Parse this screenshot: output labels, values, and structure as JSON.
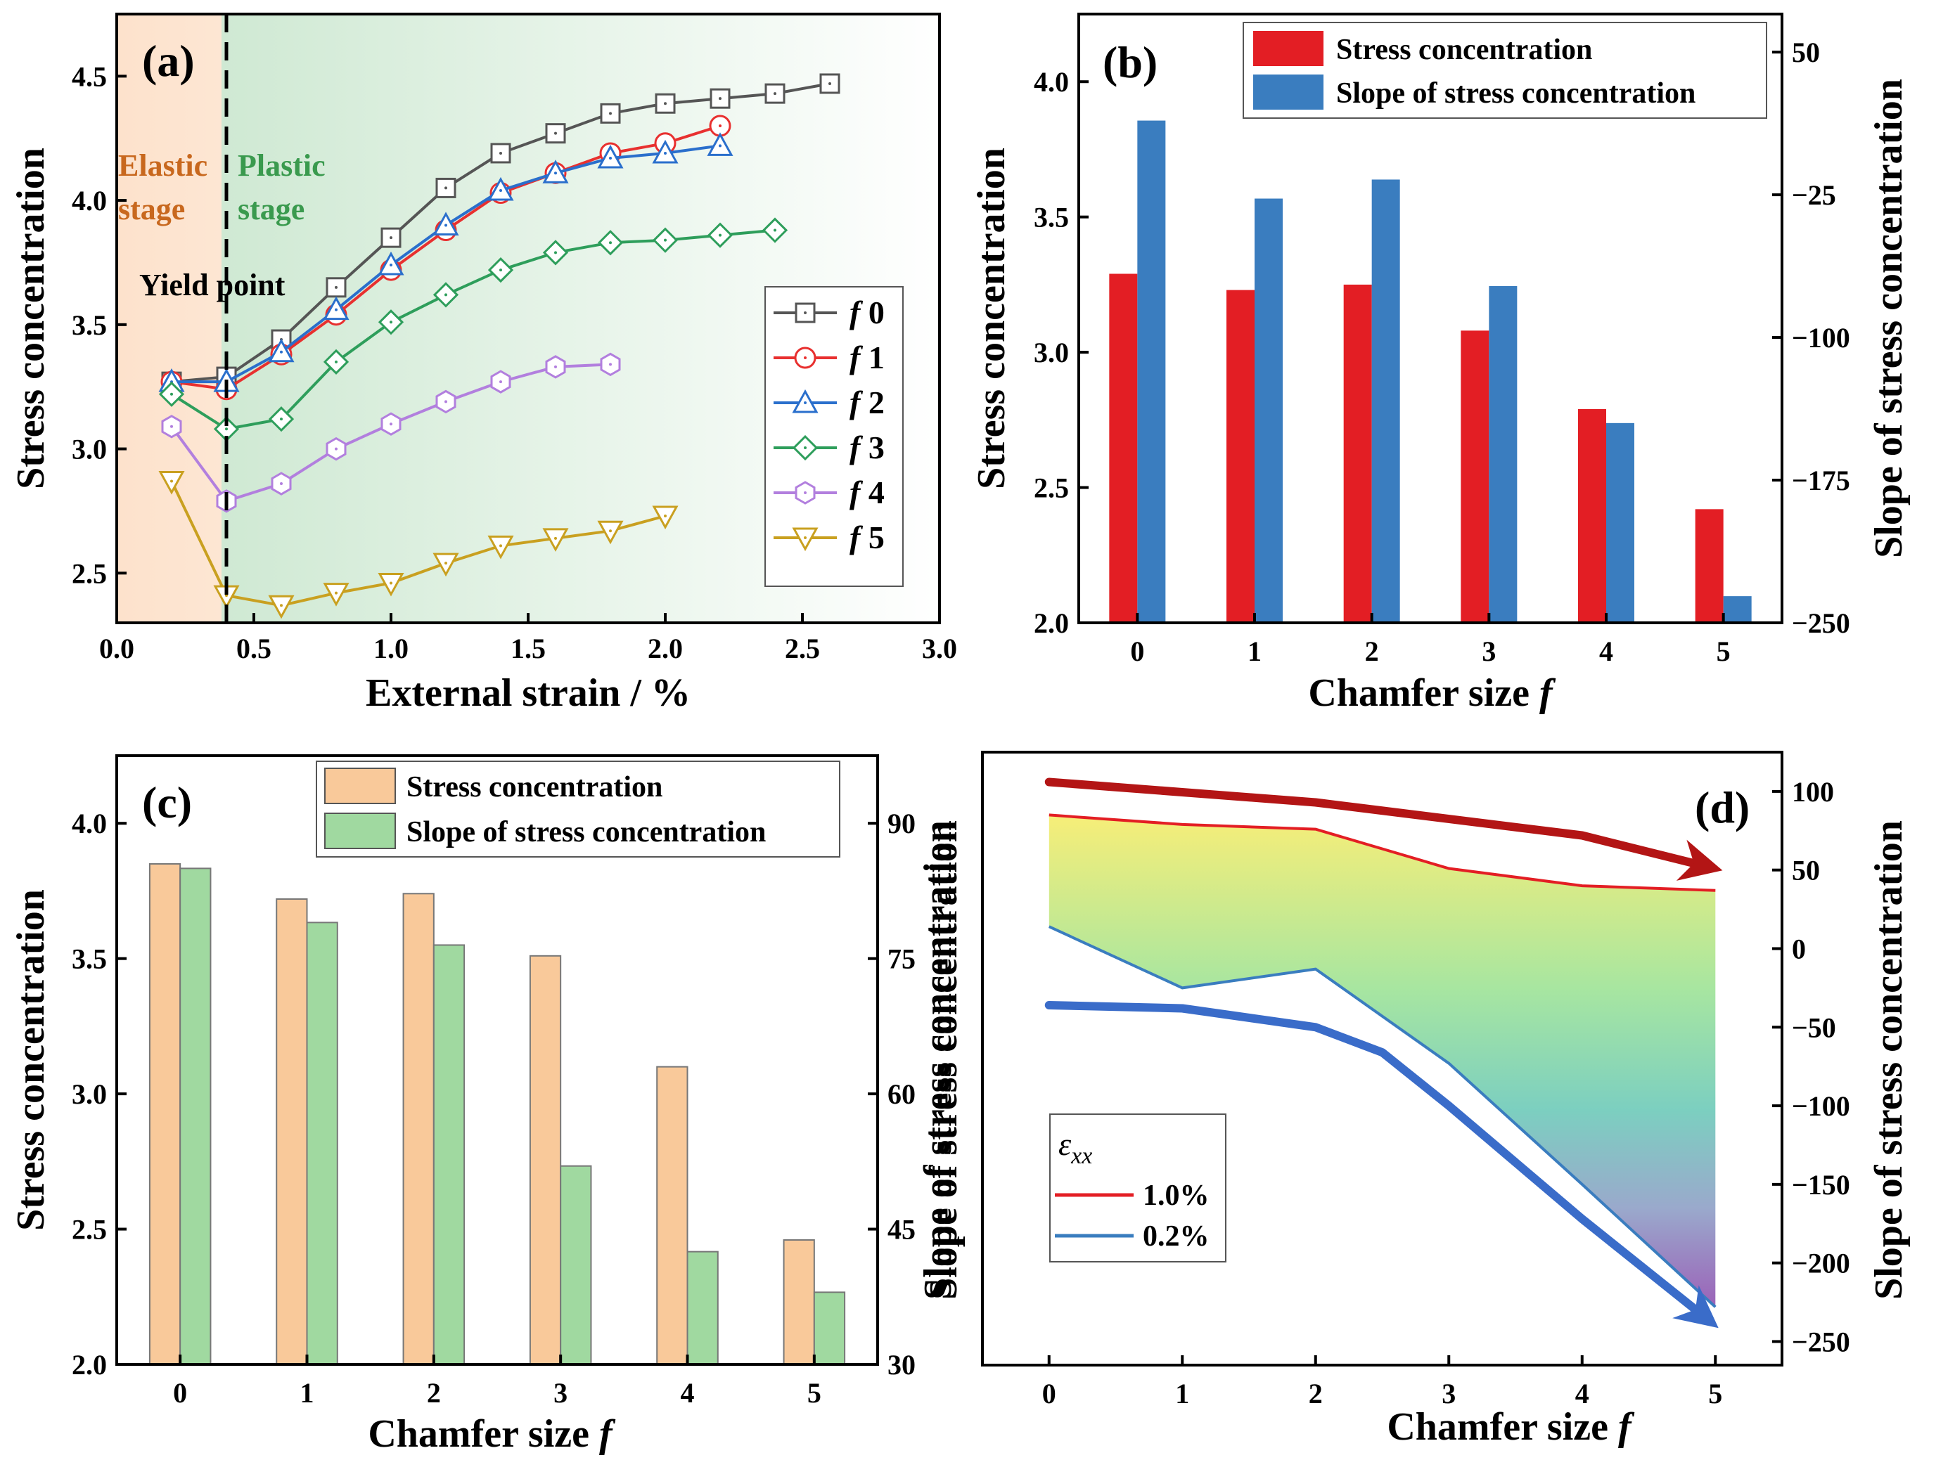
{
  "chart_data": [
    {
      "panel": "(a)",
      "type": "line",
      "xlabel": "External strain / %",
      "ylabel": "Stress concentration",
      "xlim": [
        0.0,
        3.0
      ],
      "ylim": [
        2.3,
        4.75
      ],
      "xticks": [
        0.0,
        0.5,
        1.0,
        1.5,
        2.0,
        2.5,
        3.0
      ],
      "xtick_labels": [
        "0.0",
        "0.5",
        "1.0",
        "1.5",
        "2.0",
        "2.5",
        "3.0"
      ],
      "yticks": [
        2.5,
        3.0,
        3.5,
        4.0,
        4.5
      ],
      "ytick_labels": [
        "2.5",
        "3.0",
        "3.5",
        "4.0",
        "4.5"
      ],
      "colors": {
        "elastic_region": "#fde2cc",
        "plastic_region": "#d9efdc",
        "elastic_text": "#c8681e",
        "plastic_text": "#3a9a4e"
      },
      "annotations": {
        "elastic": "Elastic\nstage",
        "plastic": "Plastic\nstage",
        "yield": "Yield point",
        "yield_x": 0.4
      },
      "legend_symbol": "f",
      "series": [
        {
          "name": "0",
          "marker": "square",
          "color": "#555555",
          "x": [
            0.2,
            0.4,
            0.6,
            0.8,
            1.0,
            1.2,
            1.4,
            1.6,
            1.8,
            2.0,
            2.2,
            2.4,
            2.6
          ],
          "values": [
            3.27,
            3.29,
            3.44,
            3.65,
            3.85,
            4.05,
            4.19,
            4.27,
            4.35,
            4.39,
            4.41,
            4.43,
            4.47
          ]
        },
        {
          "name": "1",
          "marker": "circle",
          "color": "#e8302f",
          "x": [
            0.2,
            0.4,
            0.6,
            0.8,
            1.0,
            1.2,
            1.4,
            1.6,
            1.8,
            2.0,
            2.2
          ],
          "values": [
            3.27,
            3.24,
            3.38,
            3.54,
            3.72,
            3.88,
            4.03,
            4.11,
            4.19,
            4.23,
            4.3
          ]
        },
        {
          "name": "2",
          "marker": "triangle",
          "color": "#2a6fcc",
          "x": [
            0.2,
            0.4,
            0.6,
            0.8,
            1.0,
            1.2,
            1.4,
            1.6,
            1.8,
            2.0,
            2.2
          ],
          "values": [
            3.27,
            3.27,
            3.39,
            3.56,
            3.74,
            3.9,
            4.04,
            4.11,
            4.17,
            4.19,
            4.22
          ]
        },
        {
          "name": "3",
          "marker": "diamond",
          "color": "#2e9e5b",
          "x": [
            0.2,
            0.4,
            0.6,
            0.8,
            1.0,
            1.2,
            1.4,
            1.6,
            1.8,
            2.0,
            2.2,
            2.4
          ],
          "values": [
            3.22,
            3.08,
            3.12,
            3.35,
            3.51,
            3.62,
            3.72,
            3.79,
            3.83,
            3.84,
            3.86,
            3.88
          ]
        },
        {
          "name": "4",
          "marker": "hexagon",
          "color": "#b27fde",
          "x": [
            0.2,
            0.4,
            0.6,
            0.8,
            1.0,
            1.2,
            1.4,
            1.6,
            1.8
          ],
          "values": [
            3.09,
            2.79,
            2.86,
            3.0,
            3.1,
            3.19,
            3.27,
            3.33,
            3.34
          ]
        },
        {
          "name": "5",
          "marker": "triangle-down",
          "color": "#c9a020",
          "x": [
            0.2,
            0.4,
            0.6,
            0.8,
            1.0,
            1.2,
            1.4,
            1.6,
            1.8,
            2.0
          ],
          "values": [
            2.87,
            2.41,
            2.37,
            2.42,
            2.46,
            2.54,
            2.61,
            2.64,
            2.67,
            2.73
          ]
        }
      ]
    },
    {
      "panel": "(b)",
      "type": "bar",
      "xlabel": "Chamfer size",
      "xlabel_symbol": "f",
      "ylabel": "Stress concentration",
      "ylabel_right": "Slope of stress concentration",
      "categories": [
        "0",
        "1",
        "2",
        "3",
        "4",
        "5"
      ],
      "ylim": [
        2.0,
        4.25
      ],
      "ylim_right": [
        -250,
        70
      ],
      "yticks": [
        2.0,
        2.5,
        3.0,
        3.5,
        4.0
      ],
      "ytick_labels": [
        "2.0",
        "2.5",
        "3.0",
        "3.5",
        "4.0"
      ],
      "yticks_right": [
        50,
        -25,
        -100,
        -175,
        -250
      ],
      "ytick_labels_right": [
        "50",
        "−25",
        "−100",
        "−175",
        "−250"
      ],
      "series": [
        {
          "name": "Stress concentration",
          "axis": "left",
          "color": "#e31e24",
          "values": [
            3.29,
            3.23,
            3.25,
            3.08,
            2.79,
            2.42
          ]
        },
        {
          "name": "Slope of stress concentration",
          "axis": "right",
          "color": "#3a7dbf",
          "values": [
            14,
            -27,
            -17,
            -73,
            -145,
            -236
          ]
        }
      ]
    },
    {
      "panel": "(c)",
      "type": "bar",
      "xlabel": "Chamfer size",
      "xlabel_symbol": "f",
      "ylabel": "Stress concentration",
      "ylabel_right": "Slope of stress concentration",
      "categories": [
        "0",
        "1",
        "2",
        "3",
        "4",
        "5"
      ],
      "ylim": [
        2.0,
        4.25
      ],
      "ylim_right": [
        30,
        97.5
      ],
      "yticks": [
        2.0,
        2.5,
        3.0,
        3.5,
        4.0
      ],
      "ytick_labels": [
        "2.0",
        "2.5",
        "3.0",
        "3.5",
        "4.0"
      ],
      "yticks_right": [
        30,
        45,
        60,
        75,
        90
      ],
      "ytick_labels_right": [
        "30",
        "45",
        "60",
        "75",
        "90"
      ],
      "series": [
        {
          "name": "Stress concentration",
          "axis": "left",
          "color": "#f9c99a",
          "values": [
            3.85,
            3.72,
            3.74,
            3.51,
            3.1,
            2.46
          ]
        },
        {
          "name": "Slope of stress concentration",
          "axis": "right",
          "color": "#a0d9a0",
          "values": [
            85,
            79,
            76.5,
            52,
            42.5,
            38
          ]
        }
      ]
    },
    {
      "panel": "(d)",
      "type": "area",
      "xlabel": "Chamfer size",
      "xlabel_symbol": "f",
      "ylabel": "Slope of stress concentration",
      "ylabel_right": "Slope of stress concentration",
      "x": [
        0,
        1,
        2,
        3,
        4,
        5
      ],
      "xlim": [
        -0.5,
        5.5
      ],
      "ylim": [
        -265,
        125
      ],
      "yticks_right": [
        100,
        50,
        0,
        -50,
        -100,
        -150,
        -200,
        -250
      ],
      "ytick_labels_right": [
        "100",
        "50",
        "0",
        "−50",
        "−100",
        "−150",
        "−200",
        "−250"
      ],
      "legend_title": "ε",
      "legend_title_sub": "xx",
      "series": [
        {
          "name": "1.0%",
          "color": "#e31e24",
          "values": [
            85,
            79,
            76,
            51,
            40,
            37
          ]
        },
        {
          "name": "0.2%",
          "color": "#3a7dbf",
          "values": [
            14,
            -25,
            -13,
            -73,
            -150,
            -228
          ]
        }
      ],
      "arrows": [
        {
          "name": "upper-trend",
          "color": "#b31515",
          "x": [
            0,
            2,
            4,
            4.9
          ],
          "values": [
            106,
            93,
            72,
            53
          ]
        },
        {
          "name": "lower-trend",
          "color": "#3a6cc9",
          "x": [
            0,
            1,
            2,
            2.5,
            3,
            4,
            4.9
          ],
          "values": [
            -36,
            -38,
            -50,
            -66,
            -100,
            -172,
            -233
          ]
        }
      ]
    }
  ]
}
